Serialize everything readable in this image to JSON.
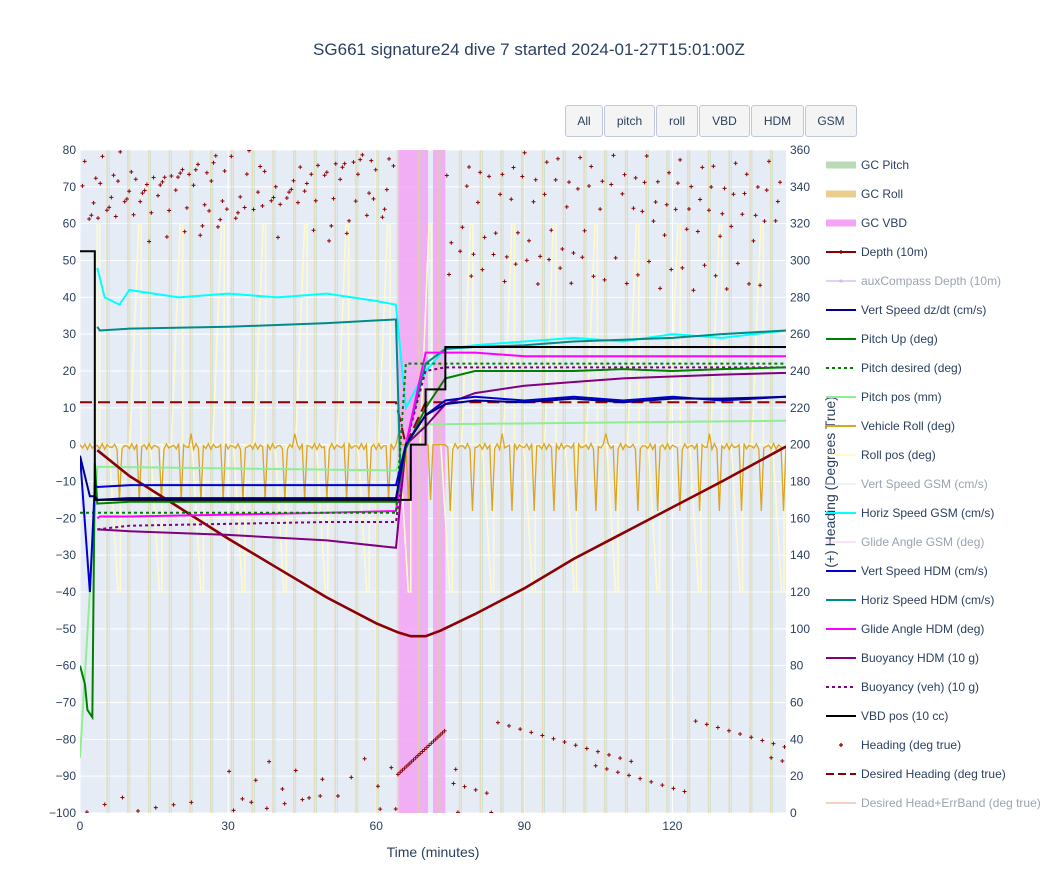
{
  "title": "SG661 signature24 dive 7 started 2024-01-27T15:01:00Z",
  "buttons": [
    "All",
    "pitch",
    "roll",
    "VBD",
    "HDM",
    "GSM"
  ],
  "chart_data": {
    "type": "line",
    "title": "SG661 signature24 dive 7 started 2024-01-27T15:01:00Z",
    "xlabel": "Time (minutes)",
    "ylabel": "",
    "y2label": "(+) Heading (Degrees True)",
    "xlim": [
      0,
      143
    ],
    "ylim": [
      -100,
      80
    ],
    "y2lim": [
      0,
      360
    ],
    "x_ticks": [
      0,
      30,
      60,
      90,
      120
    ],
    "y_ticks": [
      -100,
      -90,
      -80,
      -70,
      -60,
      -50,
      -40,
      -30,
      -20,
      -10,
      0,
      10,
      20,
      30,
      40,
      50,
      60,
      70,
      80
    ],
    "y2_ticks": [
      0,
      20,
      40,
      60,
      80,
      100,
      120,
      140,
      160,
      180,
      200,
      220,
      240,
      260,
      280,
      300,
      320,
      340,
      360
    ],
    "plot_bg": "#e5ecf6",
    "grid": true,
    "legend_position": "right",
    "vbd_shading": [
      {
        "x0": 64.5,
        "x1": 70.5
      },
      {
        "x0": 71.5,
        "x1": 74
      }
    ],
    "series": [
      {
        "name": "GC Pitch",
        "color": "#b9dbb4",
        "style": "band",
        "visible": true
      },
      {
        "name": "GC Roll",
        "color": "#e8cf8d",
        "style": "band",
        "visible": true
      },
      {
        "name": "GC VBD",
        "color": "#f5a3f5",
        "style": "band",
        "visible": true
      },
      {
        "name": "Depth (10m)",
        "color": "#8b0000",
        "style": "solid-marker",
        "visible": true,
        "x": [
          3.5,
          10,
          20,
          30,
          40,
          50,
          60,
          64.5,
          67,
          70,
          73,
          80,
          90,
          100,
          110,
          120,
          130,
          143
        ],
        "y": [
          -1.5,
          -8.5,
          -17,
          -25.5,
          -33.5,
          -41.5,
          -48.5,
          -51,
          -52,
          -52,
          -50.5,
          -46,
          -39,
          -31,
          -24,
          -17,
          -10,
          -0.5
        ]
      },
      {
        "name": "auxCompass Depth (10m)",
        "color": "#c59be0",
        "style": "solid-marker",
        "visible": false
      },
      {
        "name": "Vert Speed dz/dt (cm/s)",
        "color": "#00008b",
        "style": "solid",
        "visible": true,
        "x": [
          0,
          2,
          3,
          3.5,
          10,
          30,
          50,
          64,
          66,
          70,
          74,
          80,
          90,
          100,
          110,
          120,
          130,
          143
        ],
        "y": [
          -3,
          -14,
          -14,
          -15,
          -14.5,
          -14.5,
          -14.5,
          -14.5,
          0,
          8,
          11,
          12,
          11.5,
          12.5,
          11.5,
          12.5,
          12.5,
          13
        ]
      },
      {
        "name": "Pitch Up (deg)",
        "color": "#008000",
        "style": "solid",
        "visible": true,
        "x": [
          0,
          1,
          1.5,
          2.5,
          3,
          3.5,
          10,
          30,
          50,
          64,
          66,
          70,
          74,
          80,
          90,
          100,
          110,
          120,
          130,
          143
        ],
        "y": [
          -60,
          -65,
          -72,
          -74,
          -5,
          -16,
          -15.5,
          -15.5,
          -15.5,
          -15.5,
          -1,
          10,
          18,
          20,
          20,
          20,
          20.5,
          20,
          20.5,
          21
        ]
      },
      {
        "name": "Pitch desired (deg)",
        "color": "#008000",
        "style": "dotted",
        "visible": true,
        "x": [
          0,
          3.5,
          64,
          66,
          143
        ],
        "y": [
          -18.5,
          -18.5,
          -18.5,
          22,
          22
        ]
      },
      {
        "name": "Pitch pos (mm)",
        "color": "#90ee90",
        "style": "solid",
        "visible": true,
        "x": [
          0,
          3.5,
          64,
          66,
          70,
          143
        ],
        "y": [
          -85,
          -6,
          -7,
          0,
          5.5,
          6.5
        ]
      },
      {
        "name": "Vehicle Roll (deg)",
        "color": "#daa520",
        "style": "solid",
        "visible": true
      },
      {
        "name": "Roll pos (deg)",
        "color": "#fffacd",
        "style": "solid",
        "visible": true
      },
      {
        "name": "Vert Speed GSM (cm/s)",
        "color": "#d6e8f5",
        "style": "solid",
        "visible": false
      },
      {
        "name": "Horiz Speed GSM (cm/s)",
        "color": "#00ffff",
        "style": "solid",
        "visible": true,
        "x": [
          3.5,
          5,
          8,
          10,
          20,
          30,
          40,
          50,
          60,
          64,
          66,
          70,
          74,
          80,
          90,
          100,
          110,
          120,
          130,
          143
        ],
        "y": [
          48,
          40,
          38,
          42,
          40,
          41,
          40,
          41,
          39,
          38,
          10,
          20,
          26,
          27,
          28,
          29,
          28,
          30,
          29,
          31
        ]
      },
      {
        "name": "Glide Angle GSM (deg)",
        "color": "#f5c2f5",
        "style": "solid",
        "visible": false
      },
      {
        "name": "Vert Speed HDM (cm/s)",
        "color": "#0000cd",
        "style": "solid",
        "visible": true,
        "x": [
          0,
          2,
          3,
          3.5,
          10,
          30,
          50,
          64,
          66,
          70,
          74,
          80,
          90,
          100,
          110,
          120,
          130,
          143
        ],
        "y": [
          -3,
          -40,
          -11,
          -11.5,
          -11,
          -11,
          -11,
          -11,
          0,
          8,
          12,
          13,
          12,
          13,
          12,
          13,
          12,
          13
        ]
      },
      {
        "name": "Horiz Speed HDM (cm/s)",
        "color": "#008b8b",
        "style": "solid",
        "visible": true,
        "x": [
          3.5,
          4,
          10,
          30,
          50,
          64,
          65,
          66,
          70,
          74,
          80,
          90,
          100,
          110,
          120,
          130,
          143
        ],
        "y": [
          32,
          31,
          31.5,
          32,
          33,
          34,
          -13,
          0,
          22,
          26,
          26.5,
          27,
          28,
          28.5,
          29,
          30,
          31
        ]
      },
      {
        "name": "Glide Angle HDM (deg)",
        "color": "#ff00ff",
        "style": "solid",
        "visible": true,
        "x": [
          3.5,
          4,
          10,
          30,
          50,
          64,
          66,
          70,
          74,
          80,
          90,
          100,
          110,
          120,
          130,
          143
        ],
        "y": [
          -20,
          -19.5,
          -19.5,
          -19,
          -18.5,
          -18,
          0,
          25,
          25,
          25,
          24,
          24,
          24,
          24,
          24,
          24
        ]
      },
      {
        "name": "Buoyancy HDM (10 g)",
        "color": "#800080",
        "style": "solid",
        "visible": true,
        "x": [
          3.5,
          10,
          30,
          50,
          64,
          66,
          70,
          74,
          80,
          90,
          100,
          110,
          120,
          130,
          143
        ],
        "y": [
          -23,
          -23.5,
          -24.5,
          -26,
          -28,
          0,
          5,
          11,
          14,
          16,
          17,
          18,
          18.5,
          19,
          19.5
        ]
      },
      {
        "name": "Buoyancy (veh) (10 g)",
        "color": "#800080",
        "style": "dotted",
        "visible": true,
        "x": [
          3.5,
          10,
          30,
          50,
          64,
          66,
          70,
          74,
          80,
          90,
          100,
          110,
          120,
          130,
          143
        ],
        "y": [
          -23,
          -22,
          -21.5,
          -21,
          -21,
          0,
          20,
          21,
          21,
          21,
          21,
          21,
          21,
          21,
          21
        ]
      },
      {
        "name": "VBD pos (10 cc)",
        "color": "#000000",
        "style": "solid",
        "visible": true,
        "x": [
          0,
          3,
          3,
          64,
          67,
          67,
          70,
          70,
          74,
          74,
          143
        ],
        "y": [
          52.5,
          52.5,
          -15,
          -15,
          -15,
          0,
          0,
          15,
          15,
          26.5,
          26.5
        ]
      },
      {
        "name": "Heading (deg true)",
        "color": "#8b0000",
        "style": "markers",
        "visible": true,
        "axis": "y2"
      },
      {
        "name": "Desired Heading (deg true)",
        "color": "#8b0000",
        "style": "dashed",
        "visible": true,
        "x": [
          0,
          64,
          66,
          70,
          74,
          143
        ],
        "y": [
          11.5,
          11.5,
          0,
          11.5,
          11.5,
          11.5
        ]
      },
      {
        "name": "Desired Head+ErrBand (deg true)",
        "color": "#e9967a",
        "style": "solid",
        "visible": false
      }
    ]
  }
}
